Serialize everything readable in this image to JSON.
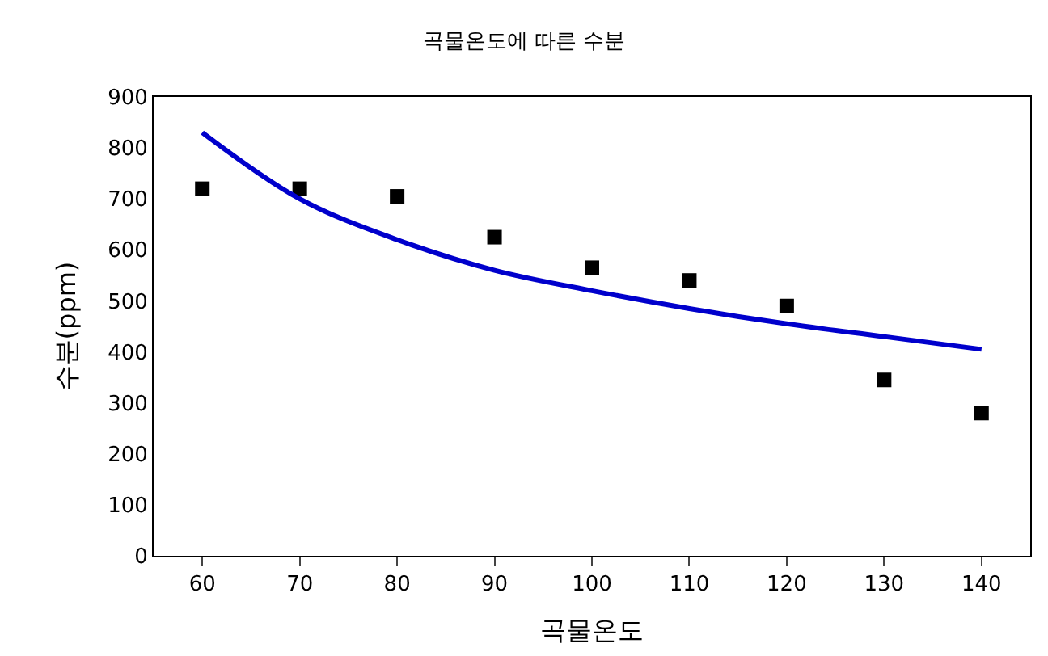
{
  "chart_data": {
    "type": "scatter",
    "title": "곡물온도에 따른 수분",
    "xlabel": "곡물온도",
    "ylabel": "수분(ppm)",
    "categories": [
      "60",
      "70",
      "80",
      "90",
      "100",
      "110",
      "120",
      "130",
      "140"
    ],
    "series": [
      {
        "color": "#000000",
        "marker": "square",
        "values": [
          720,
          720,
          705,
          625,
          565,
          540,
          490,
          345,
          280
        ]
      },
      {
        "type": "line",
        "color": "#0000cc",
        "marker": "none",
        "values": [
          830,
          700,
          620,
          560,
          520,
          485,
          455,
          430,
          405
        ]
      }
    ],
    "ylim": [
      0,
      900
    ],
    "yticks": [
      0,
      100,
      200,
      300,
      400,
      500,
      600,
      700,
      800,
      900
    ],
    "legend": false
  }
}
